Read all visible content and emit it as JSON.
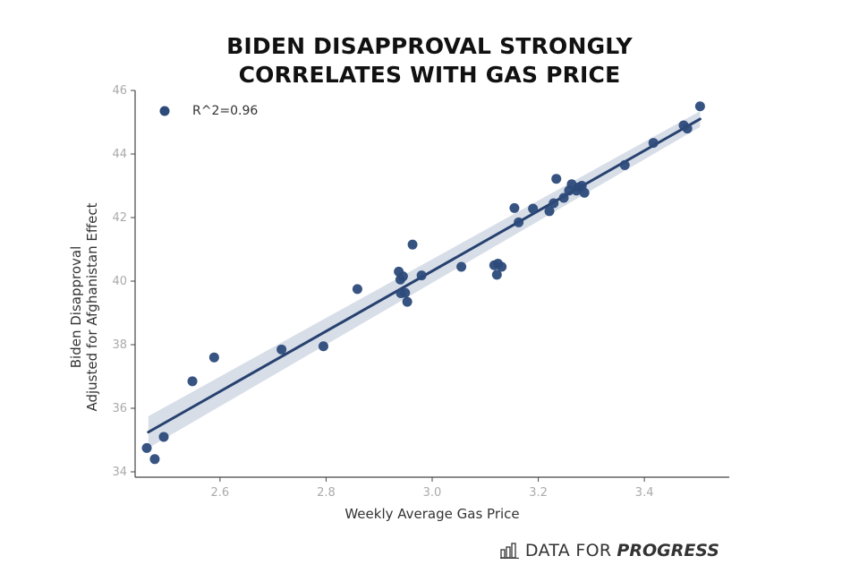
{
  "title": {
    "line1": "BIDEN DISAPPROVAL STRONGLY",
    "line2": "CORRELATES WITH GAS PRICE"
  },
  "brand": {
    "icon": "bar-chart-icon",
    "text_regular": "DATA FOR",
    "text_bold": "PROGRESS"
  },
  "colors": {
    "points": "#2c4a7a",
    "line": "#27416f",
    "band": "#c9d3e0",
    "axis": "#444444"
  },
  "chart_data": {
    "type": "scatter",
    "title": "BIDEN DISAPPROVAL STRONGLY CORRELATES WITH GAS PRICE",
    "xlabel": "Weekly Average Gas Price",
    "ylabel_lines": [
      "Biden Disapproval",
      "Adjusted for Afghanistan Effect"
    ],
    "xlim": [
      2.44,
      3.56
    ],
    "ylim": [
      34,
      46
    ],
    "xticks": [
      2.6,
      2.8,
      3.0,
      3.2,
      3.4
    ],
    "xtick_labels": [
      "2.6",
      "2.8",
      "3.0",
      "3.2",
      "3.4"
    ],
    "yticks": [
      34,
      36,
      38,
      40,
      42,
      44,
      46
    ],
    "ytick_labels": [
      "34",
      "36",
      "38",
      "40",
      "42",
      "44",
      "46"
    ],
    "grid": false,
    "legend": {
      "label": "R^2=0.96",
      "placement": "top-left"
    },
    "regression": {
      "x": [
        2.465,
        3.505
      ],
      "y": [
        35.25,
        45.1
      ],
      "ci_lower": [
        34.75,
        44.85
      ],
      "ci_upper": [
        35.75,
        45.35
      ]
    },
    "points": [
      {
        "x": 2.462,
        "y": 34.75
      },
      {
        "x": 2.477,
        "y": 34.4
      },
      {
        "x": 2.494,
        "y": 35.1
      },
      {
        "x": 2.548,
        "y": 36.85
      },
      {
        "x": 2.589,
        "y": 37.6
      },
      {
        "x": 2.716,
        "y": 37.85
      },
      {
        "x": 2.795,
        "y": 37.95
      },
      {
        "x": 2.859,
        "y": 39.75
      },
      {
        "x": 2.937,
        "y": 40.3
      },
      {
        "x": 2.94,
        "y": 40.05
      },
      {
        "x": 2.941,
        "y": 39.62
      },
      {
        "x": 2.945,
        "y": 40.15
      },
      {
        "x": 2.949,
        "y": 39.63
      },
      {
        "x": 2.953,
        "y": 39.35
      },
      {
        "x": 2.963,
        "y": 41.15
      },
      {
        "x": 2.98,
        "y": 40.18
      },
      {
        "x": 3.055,
        "y": 40.45
      },
      {
        "x": 3.117,
        "y": 40.5
      },
      {
        "x": 3.122,
        "y": 40.2
      },
      {
        "x": 3.124,
        "y": 40.55
      },
      {
        "x": 3.131,
        "y": 40.45
      },
      {
        "x": 3.155,
        "y": 42.3
      },
      {
        "x": 3.163,
        "y": 41.85
      },
      {
        "x": 3.19,
        "y": 42.28
      },
      {
        "x": 3.221,
        "y": 42.2
      },
      {
        "x": 3.229,
        "y": 42.45
      },
      {
        "x": 3.234,
        "y": 43.22
      },
      {
        "x": 3.248,
        "y": 42.62
      },
      {
        "x": 3.258,
        "y": 42.85
      },
      {
        "x": 3.263,
        "y": 43.05
      },
      {
        "x": 3.272,
        "y": 42.85
      },
      {
        "x": 3.276,
        "y": 42.95
      },
      {
        "x": 3.282,
        "y": 43.0
      },
      {
        "x": 3.287,
        "y": 42.78
      },
      {
        "x": 3.363,
        "y": 43.65
      },
      {
        "x": 3.417,
        "y": 44.35
      },
      {
        "x": 3.474,
        "y": 44.9
      },
      {
        "x": 3.481,
        "y": 44.8
      },
      {
        "x": 3.505,
        "y": 45.5
      }
    ]
  }
}
